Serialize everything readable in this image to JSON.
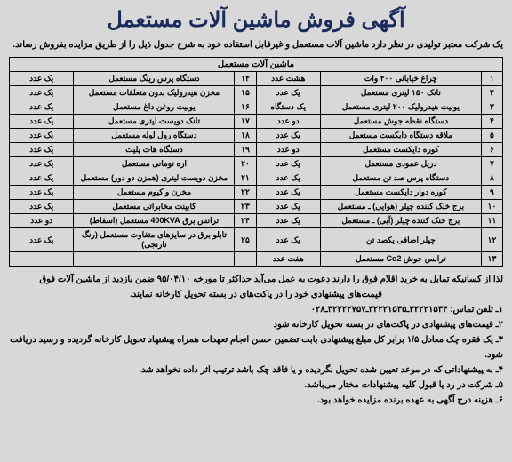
{
  "title": "آگهی فروش ماشین آلات مستعمل",
  "intro": "یک شرکت معتبر تولیدی در نظر دارد ماشین آلات مستعمل و غیرقابل استفاده خود به شرح جدول ذیل را از طریق مزایده بفروش رساند.",
  "table_header": "ماشین آلات مستعمل",
  "rows_right": [
    {
      "n": "۱",
      "item": "چراغ خیابانی ۴۰۰ وات",
      "qty": "هشت عدد"
    },
    {
      "n": "۲",
      "item": "تانک ۱۵۰ لیتری مستعمل",
      "qty": "یک عدد"
    },
    {
      "n": "۳",
      "item": "یونیت هیدرولیک ۲۰۰ لیتری مستعمل",
      "qty": "یک دستگاه"
    },
    {
      "n": "۴",
      "item": "دستگاه نقطه جوش مستعمل",
      "qty": "دو عدد"
    },
    {
      "n": "۵",
      "item": "ملاقه دستگاه دایکست مستعمل",
      "qty": "یک عدد"
    },
    {
      "n": "۶",
      "item": "کوره دایکست مستعمل",
      "qty": "دو عدد"
    },
    {
      "n": "۷",
      "item": "دریل عمودی مستعمل",
      "qty": "یک عدد"
    },
    {
      "n": "۸",
      "item": "دستگاه پرس صد تن مستعمل",
      "qty": "یک عدد"
    },
    {
      "n": "۹",
      "item": "کوره دوار دایکست مستعمل",
      "qty": "یک عدد"
    },
    {
      "n": "۱۰",
      "item": "برج خنک کننده چیلر (هوایی) ـ مستعمل",
      "qty": "یک عدد"
    },
    {
      "n": "۱۱",
      "item": "برج خنک کننده چیلر (آبی) ـ مستعمل",
      "qty": "یک عدد"
    },
    {
      "n": "۱۲",
      "item": "چیلر اضافی یکصد تن",
      "qty": "یک عدد"
    },
    {
      "n": "۱۳",
      "item": "ترانس جوش Co2 مستعمل",
      "qty": "هفت عدد"
    }
  ],
  "rows_left": [
    {
      "n": "۱۴",
      "item": "دستگاه پرس رینگ مستعمل",
      "qty": "یک عدد"
    },
    {
      "n": "۱۵",
      "item": "مخزن هیدرولیک بدون متعلقات مستعمل",
      "qty": "یک عدد"
    },
    {
      "n": "۱۶",
      "item": "یونیت روغن داغ مستعمل",
      "qty": "یک عدد"
    },
    {
      "n": "۱۷",
      "item": "تانک دویست لیتری مستعمل",
      "qty": "یک عدد"
    },
    {
      "n": "۱۸",
      "item": "دستگاه رول لوله مستعمل",
      "qty": "یک عدد"
    },
    {
      "n": "۱۹",
      "item": "دستگاه هات پلیت",
      "qty": "یک عدد"
    },
    {
      "n": "۲۰",
      "item": "اره تومانی مستعمل",
      "qty": "یک عدد"
    },
    {
      "n": "۲۱",
      "item": "مخزن دویست لیتری (همزن دو دور) مستعمل",
      "qty": "یک عدد"
    },
    {
      "n": "۲۲",
      "item": "مخزن و کیوم مستعمل",
      "qty": "یک عدد"
    },
    {
      "n": "۲۳",
      "item": "کابینت مخابراتی مستعمل",
      "qty": "یک عدد"
    },
    {
      "n": "۲۴",
      "item": "ترانس برق 400KVA مستعمل (اسقاط)",
      "qty": "دو عدد"
    },
    {
      "n": "۲۵",
      "item": "تابلو برق در سایزهای متفاوت مستعمل (رنگ نارنجی)",
      "qty": "یک عدد"
    },
    {
      "n": "",
      "item": "",
      "qty": ""
    }
  ],
  "footer": {
    "l1": "لذا از کسانیکه تمایل به خرید اقلام فوق را دارند دعوت به عمل می‌آید حداکثر تا مورخه ۹۵/۰۴/۱۰ ضمن بازدید از ماشین آلات فوق",
    "l1c": "قیمت‌های پیشنهادی خود را در پاکت‌های در بسته تحویل کارخانه نمایند.",
    "l2": "۱ـ تلفن تماس: ۳۲۲۲۱۵۳۴ـ۳۲۲۲۱۵۳۵ـ۳۲۲۲۲۷۵۷ـ۰۲۸",
    "l3": "۲ـ قیمت‌های پیشنهادی در پاکت‌های در بسته تحویل کارخانه شود",
    "l4": "۳ـ یک فقره چک معادل ۱/۵ برابر کل مبلغ پیشنهادی بابت تضمین حسن انجام تعهدات همراه پیشنهاد تحویل کارخانه گردیده و رسید دریافت شود.",
    "l5": "۴ـ به پیشنهاداتی که در موعد تعیین شده تحویل نگردیده و یا فاقد چک باشد ترتیب اثر داده نخواهد شد.",
    "l6": "۵ـ شرکت در رد یا قبول کلیه پیشنهادات مختار می‌باشد.",
    "l7": "۶ـ هزینه درج آگهی به عهده برنده مزایده خواهد بود."
  }
}
